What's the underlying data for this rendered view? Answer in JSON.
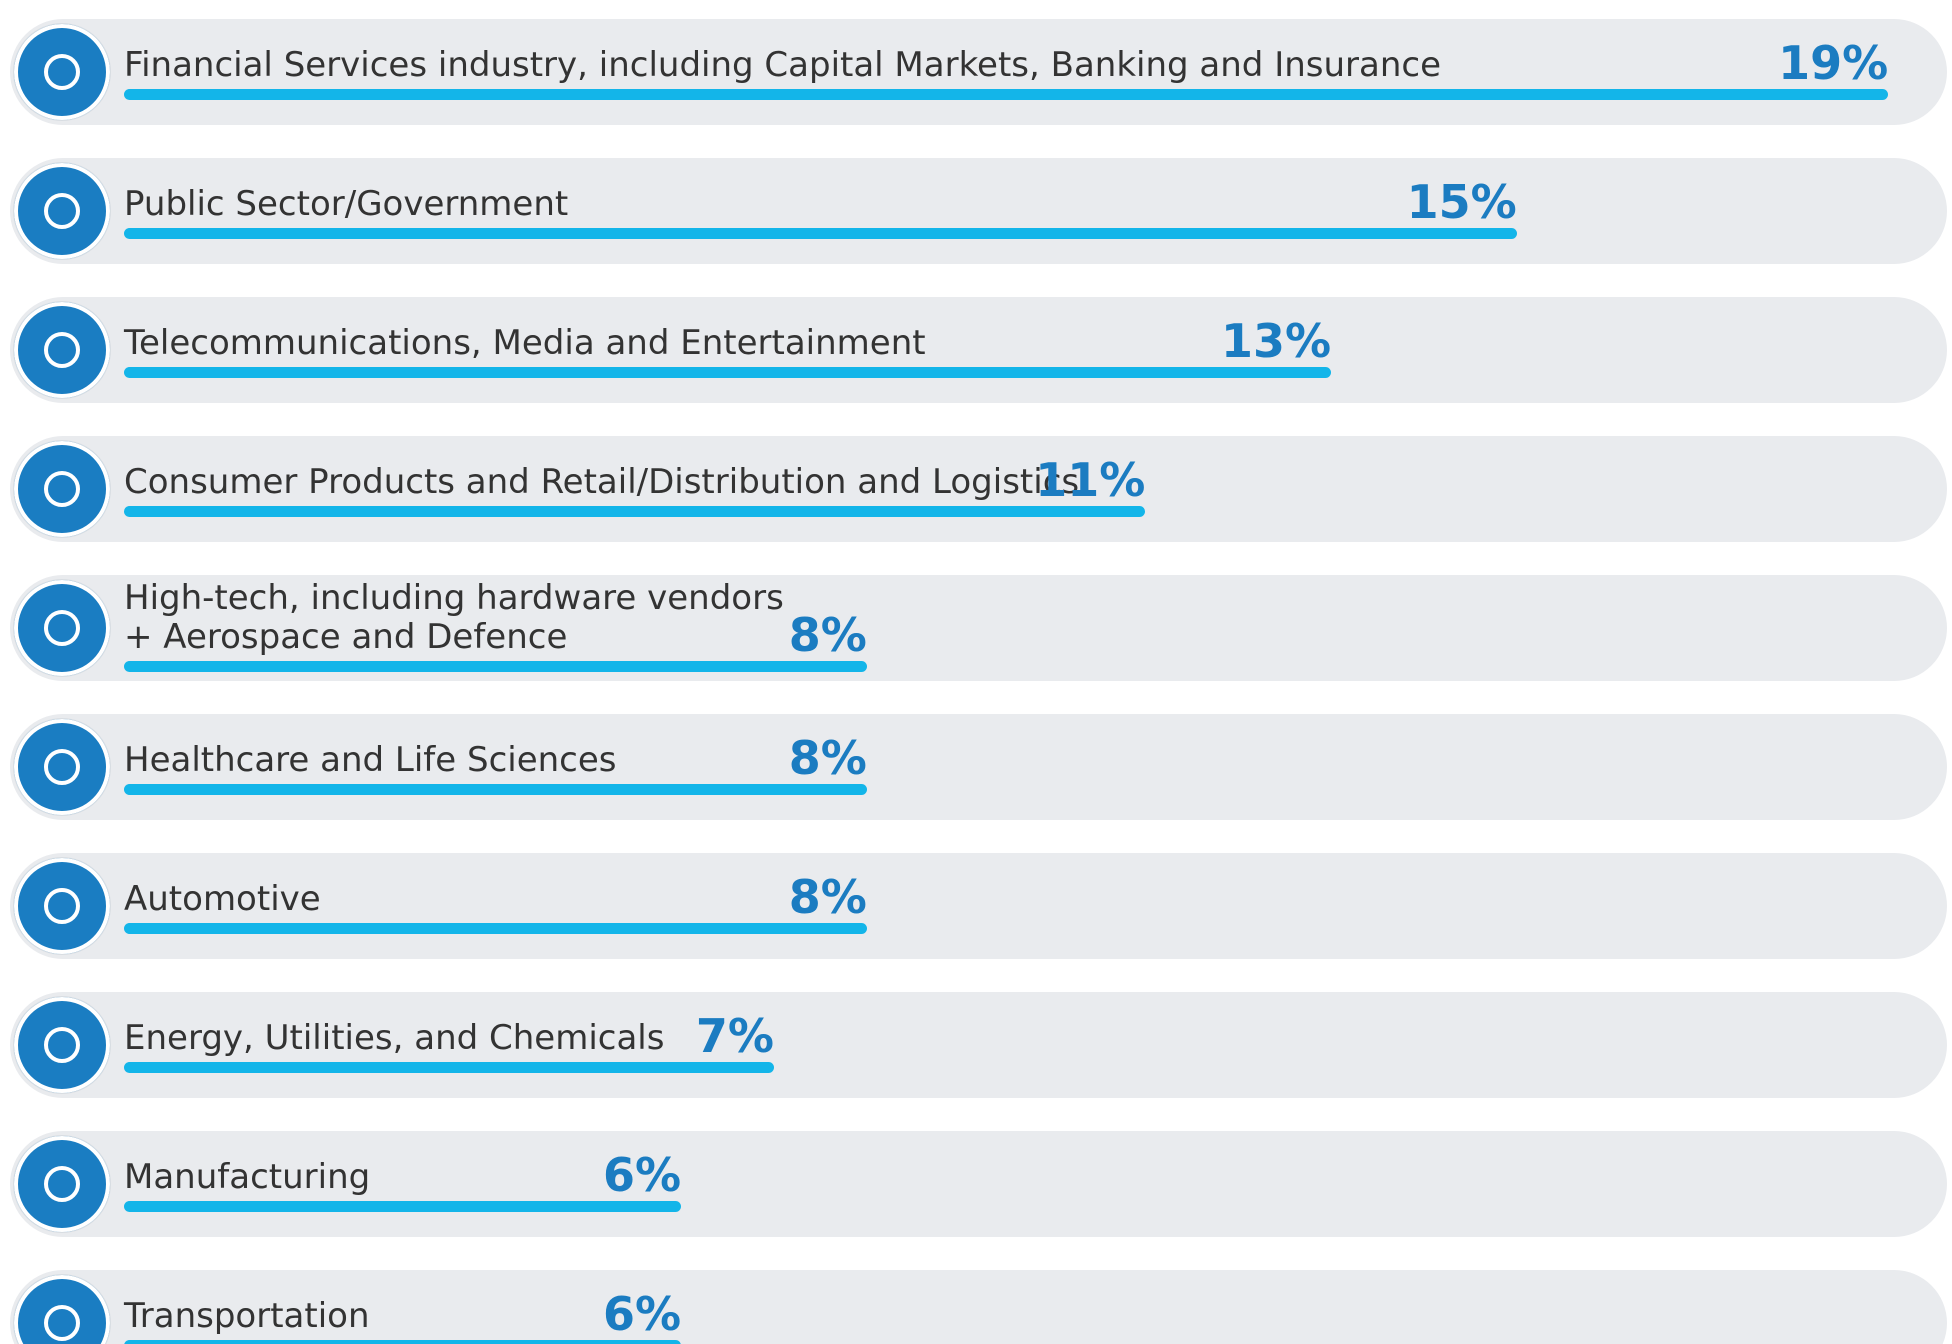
{
  "chart_data": {
    "type": "bar",
    "orientation": "horizontal",
    "categories": [
      "Financial Services industry, including Capital Markets, Banking and Insurance",
      "Public Sector/Government",
      "Telecommunications, Media and Entertainment",
      "Consumer Products and Retail/Distribution and Logistics",
      "High-tech, including hardware vendors\n+ Aerospace and Defence",
      "Healthcare and Life Sciences",
      "Automotive",
      "Energy, Utilities, and Chemicals",
      "Manufacturing",
      "Transportation"
    ],
    "values": [
      19,
      15,
      13,
      11,
      8,
      8,
      8,
      7,
      6,
      6
    ],
    "value_labels": [
      "19%",
      "15%",
      "13%",
      "11%",
      "8%",
      "8%",
      "8%",
      "7%",
      "6%",
      "6%"
    ],
    "xlim": [
      0,
      19
    ],
    "color": "#13b5e9",
    "label_color": "#1b7cc1"
  }
}
